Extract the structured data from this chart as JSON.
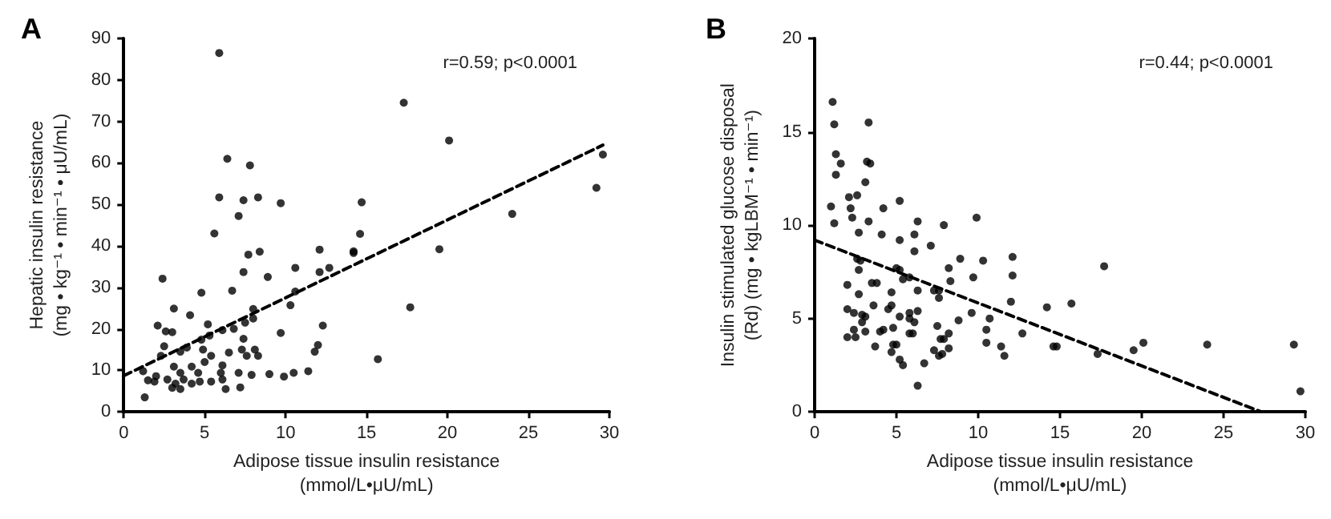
{
  "chart_data": [
    {
      "type": "scatter",
      "title": "A",
      "xlabel": "Adipose tissue insulin resistance\n(mmol/L•μU/mL)",
      "ylabel": "Hepatic insulin resistance\n(mg • kg⁻¹ • min⁻¹ • μU/mL)",
      "annotations": [
        "r=0.59; p<0.0001"
      ],
      "xlim": [
        0,
        30
      ],
      "xticks": [
        0,
        5,
        10,
        15,
        20,
        25,
        30
      ],
      "ylim": [
        0,
        90
      ],
      "yticks": [
        0,
        10,
        20,
        30,
        40,
        50,
        60,
        70,
        80,
        90
      ],
      "grid": false,
      "marker": "circle",
      "series": [
        {
          "color": "#000000",
          "x": [
            5.9,
            6.4,
            7.8,
            5.9,
            7.4,
            8.3,
            9.7,
            7.1,
            5.6,
            7.7,
            8.4,
            12.1,
            14.2,
            7.4,
            10.6,
            12.1,
            12.7,
            2.4,
            8.9,
            4.8,
            6.7,
            10.6,
            10.3,
            3.1,
            8.0,
            4.1,
            8.0,
            2.1,
            5.2,
            7.5,
            2.6,
            3.0,
            6.1,
            6.8,
            5.3,
            9.7,
            12.3,
            2.5,
            3.9,
            4.8,
            7.4,
            12.0,
            11.8,
            2.3,
            3.5,
            4.9,
            5.4,
            6.5,
            7.3,
            8.1,
            8.3,
            7.6,
            3.1,
            4.2,
            5.0,
            6.1,
            1.2,
            2.0,
            3.5,
            4.6,
            6.0,
            7.1,
            1.5,
            2.7,
            3.7,
            4.7,
            5.4,
            6.1,
            7.9,
            9.0,
            9.9,
            10.5,
            11.4,
            3.0,
            3.5,
            6.3,
            7.2,
            1.3,
            1.9,
            3.2,
            4.2,
            17.3,
            20.1,
            14.7,
            14.6,
            14.2,
            19.5,
            24.0,
            29.2,
            29.6,
            17.7,
            15.7
          ],
          "values": [
            86.5,
            61,
            59.4,
            51.7,
            51,
            51.7,
            50.3,
            47.2,
            43,
            37.9,
            38.6,
            39.1,
            38.7,
            33.7,
            34.7,
            33.7,
            34.7,
            32.1,
            32.5,
            28.7,
            29.2,
            29,
            25.7,
            24.9,
            24.8,
            23.3,
            22.5,
            20.8,
            21.1,
            21.5,
            19.4,
            19.2,
            19.7,
            20,
            18.4,
            19,
            20.8,
            15.8,
            15.5,
            17.4,
            17.6,
            16.1,
            14.5,
            13.5,
            14.5,
            15,
            13.5,
            14.3,
            15,
            15,
            13.5,
            13.5,
            10.9,
            10.9,
            12,
            11.2,
            9.8,
            8.6,
            9.4,
            9.4,
            9.4,
            9.4,
            7.6,
            7.8,
            7.8,
            7.3,
            7.3,
            7.8,
            8.9,
            9.1,
            8.5,
            9.4,
            9.8,
            5.8,
            5.5,
            5.5,
            5.9,
            3.5,
            7.3,
            6.8,
            6.8,
            74.5,
            65.4,
            50.5,
            42.9,
            38.3,
            39.2,
            47.7,
            54,
            62,
            25.2,
            12.7
          ]
        },
        {
          "type": "line",
          "color": "#000000",
          "marker": "none",
          "line_style": "dashed",
          "x": [
            0,
            29.6
          ],
          "values": [
            8.7,
            64.3
          ]
        }
      ]
    },
    {
      "type": "scatter",
      "title": "B",
      "xlabel": "Adipose tissue insulin resistance\n(mmol/L•μU/mL)",
      "ylabel": "Insulin stimulated glucose disposal\n(Rd) (mg • kgLBM⁻¹ • min⁻¹)",
      "annotations": [
        "r=0.44; p<0.0001"
      ],
      "xlim": [
        0,
        30
      ],
      "xticks": [
        0,
        5,
        10,
        15,
        20,
        25,
        30
      ],
      "ylim": [
        0,
        20
      ],
      "yticks": [
        0,
        5,
        10,
        15,
        20
      ],
      "grid": false,
      "marker": "circle",
      "series": [
        {
          "color": "#000000",
          "x": [
            1.1,
            1.2,
            3.3,
            1.3,
            1.6,
            1.3,
            3.2,
            3.4,
            3.1,
            1.0,
            2.1,
            2.6,
            2.2,
            4.2,
            5.2,
            1.2,
            2.3,
            3.3,
            4.1,
            2.7,
            6.3,
            7.9,
            9.9,
            5.2,
            6.1,
            6.1,
            7.1,
            2.6,
            2.8,
            8.9,
            10.3,
            12.1,
            5.0,
            5.2,
            2.7,
            8.2,
            12.1,
            9.7,
            3.5,
            3.8,
            5.4,
            5.8,
            7.3,
            7.6,
            2.0,
            6.3,
            7.6,
            8.3,
            2.7,
            4.7,
            4.7,
            3.6,
            2.0,
            2.4,
            2.9,
            3.1,
            5.8,
            6.3,
            4.5,
            5.2,
            12.0,
            9.6,
            8.8,
            5.8,
            2.9,
            10.7,
            4.8,
            6.1,
            7.5,
            2.4,
            2.0,
            2.5,
            3.1,
            4.0,
            4.2,
            5.8,
            6.0,
            8.2,
            7.9,
            7.7,
            10.5,
            10.5,
            12.7,
            3.7,
            4.8,
            5.0,
            8.2,
            11.4,
            4.7,
            7.3,
            7.6,
            7.8,
            11.6,
            5.2,
            5.4,
            6.7,
            6.3,
            17.7,
            14.2,
            15.7,
            14.6,
            14.8,
            17.3,
            19.5,
            20.1,
            24.0,
            29.3,
            29.7
          ],
          "values": [
            16.6,
            15.4,
            15.5,
            13.8,
            13.3,
            12.7,
            13.4,
            13.3,
            12.3,
            11,
            11.5,
            11.6,
            10.9,
            10.9,
            11.3,
            10.1,
            10.4,
            10.2,
            9.5,
            9.6,
            10.2,
            10,
            10.4,
            9.2,
            9.5,
            8.6,
            8.9,
            8.2,
            8.1,
            8.2,
            8.1,
            8.3,
            7.7,
            7.6,
            7.6,
            7.7,
            7.3,
            7.2,
            6.9,
            6.9,
            7.1,
            7.2,
            6.5,
            6.5,
            6.8,
            6.5,
            6.1,
            7,
            6.3,
            6.4,
            5.7,
            5.7,
            5.5,
            5.3,
            5.2,
            5.1,
            5.3,
            5.4,
            5.5,
            5.1,
            5.9,
            5.3,
            4.9,
            5.0,
            4.8,
            5.0,
            4.5,
            4.8,
            4.6,
            4.4,
            4.0,
            4.0,
            4.3,
            4.3,
            4.4,
            4.2,
            4.2,
            4.2,
            3.9,
            3.9,
            4.4,
            3.7,
            4.2,
            3.5,
            3.6,
            3.6,
            3.4,
            3.5,
            3.2,
            3.3,
            3.0,
            3.1,
            3.0,
            2.8,
            2.5,
            2.6,
            1.4,
            7.8,
            5.6,
            5.8,
            3.5,
            3.5,
            3.1,
            3.3,
            3.7,
            3.6,
            3.6,
            1.1
          ]
        },
        {
          "type": "line",
          "color": "#000000",
          "marker": "none",
          "line_style": "dashed",
          "x": [
            0,
            27.3
          ],
          "values": [
            9.2,
            0
          ]
        }
      ]
    }
  ]
}
